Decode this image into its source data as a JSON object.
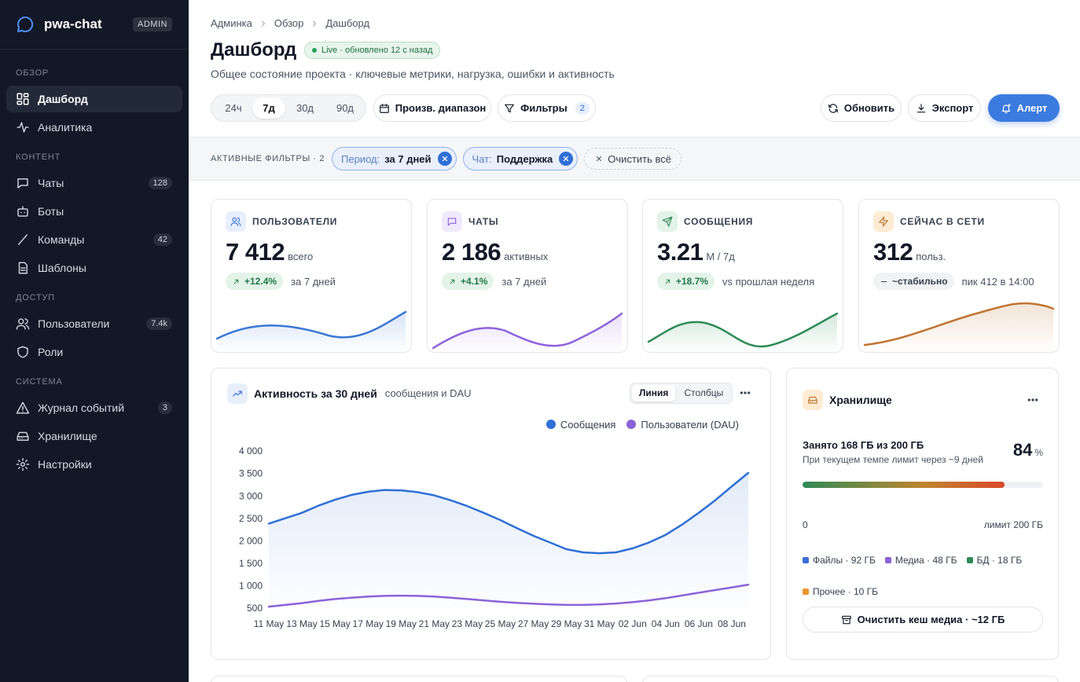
{
  "sidebar": {
    "brand": "pwa-chat",
    "badge": "ADMIN",
    "sections": [
      {
        "title": "ОБЗОР",
        "items": [
          {
            "label": "Дашборд"
          },
          {
            "label": "Аналитика"
          }
        ]
      },
      {
        "title": "КОНТЕНТ",
        "items": [
          {
            "label": "Чаты",
            "count": 128
          },
          {
            "label": "Боты"
          },
          {
            "label": "Команды",
            "count": 42
          },
          {
            "label": "Шаблоны"
          }
        ]
      },
      {
        "title": "ДОСТУП",
        "items": [
          {
            "label": "Пользователи",
            "count": "7.4k"
          },
          {
            "label": "Роли"
          }
        ]
      },
      {
        "title": "СИСТЕМА",
        "items": [
          {
            "label": "Журнал событий",
            "count": 3
          },
          {
            "label": "Хранилище"
          },
          {
            "label": "Настройки"
          }
        ]
      }
    ]
  },
  "header": {
    "breadcrumbs": [
      "Админка",
      "Обзор",
      "Дашборд"
    ],
    "title": "Дашборд",
    "live": "Live · обновлено 12 с назад",
    "subtitle": "Общее состояние проекта · ключевые метрики, нагрузка, ошибки и активность"
  },
  "toolbar": {
    "ranges": [
      "24ч",
      "7д",
      "30д",
      "90д"
    ],
    "custom": "Произв. диапазон",
    "filters": "Фильтры",
    "filters_count": 2,
    "refresh": "Обновить",
    "export": "Экспорт",
    "alert": "Алерт"
  },
  "active_filters": {
    "label": "АКТИВНЫЕ ФИЛЬТРЫ · 2",
    "chips": [
      {
        "key": "Период:",
        "value": "за 7 дней"
      },
      {
        "key": "Чат:",
        "value": "Поддержка"
      }
    ],
    "clear": "Очистить всё"
  },
  "kpis": [
    {
      "title": "ПОЛЬЗОВАТЕЛИ",
      "value": "7 412",
      "unit": "всего",
      "delta": "+12.4%",
      "note": "за 7 дней",
      "color": "#3a78d4"
    },
    {
      "title": "ЧАТЫ",
      "value": "2 186",
      "unit": "активных",
      "delta": "+4.1%",
      "note": "за 7 дней",
      "color": "#8e63dc"
    },
    {
      "title": "СООБЩЕНИЯ",
      "value": 3.21,
      "unit": "М / 7д",
      "delta": "+18.7%",
      "note": "vs прошлая неделя",
      "color": "#2e8b57"
    },
    {
      "title": "СЕЙЧАС В СЕТИ",
      "value": 312,
      "unit": "польз.",
      "delta": "~стабильно",
      "note": "пик 412 в 14:00",
      "color": "#c07532"
    }
  ],
  "chart_data": {
    "type": "line",
    "title": "Активность за 30 дней",
    "subtitle": "сообщения и DAU",
    "modes": [
      "Линия",
      "Столбцы"
    ],
    "categories": [
      "11 May",
      null,
      "13 May",
      null,
      "15 May",
      null,
      "17 May",
      null,
      "19 May",
      null,
      "21 May",
      null,
      "23 May",
      null,
      "25 May",
      null,
      "27 May",
      null,
      "29 May",
      null,
      "31 May",
      null,
      "02 Jun",
      null,
      "04 Jun",
      null,
      "06 Jun",
      null,
      "08 Jun",
      null
    ],
    "series": [
      {
        "name": "Сообщения",
        "color": "#2f6fd6",
        "values": [
          2400,
          2520,
          2640,
          2800,
          2930,
          3040,
          3110,
          3150,
          3140,
          3100,
          3030,
          2920,
          2790,
          2640,
          2480,
          2300,
          2130,
          1980,
          1830,
          1760,
          1740,
          1760,
          1850,
          1980,
          2150,
          2380,
          2640,
          2920,
          3230,
          3530
        ]
      },
      {
        "name": "Пользователи (DAU)",
        "color": "#8b63d8",
        "values": [
          550,
          590,
          630,
          680,
          720,
          750,
          775,
          790,
          795,
          790,
          775,
          750,
          720,
          690,
          660,
          635,
          615,
          600,
          590,
          590,
          600,
          620,
          650,
          690,
          740,
          800,
          860,
          920,
          980,
          1040
        ]
      }
    ],
    "ylim": [
      500,
      4000
    ],
    "yticks": [
      500,
      {
        "value": 1000,
        "label": "1 000"
      },
      {
        "value": 1500,
        "label": "1 500"
      },
      {
        "value": 2000,
        "label": "2 000"
      },
      {
        "value": 2500,
        "label": "2 500"
      },
      {
        "value": 3000,
        "label": "3 000"
      },
      {
        "value": 3500,
        "label": "3 500"
      },
      {
        "value": 4000,
        "label": "4 000"
      }
    ],
    "grid": false,
    "legend": "top-right"
  },
  "storage": {
    "title": "Хранилище",
    "used": "Занято 168 ГБ из 200 ГБ",
    "forecast": "При текущем темпе лимит через ~9 дней",
    "percent": 84,
    "percent_unit": "%",
    "scale_min": "0",
    "scale_max": "лимит 200 ГБ",
    "legend": [
      {
        "label": "Файлы · 92 ГБ",
        "color": "#3b6fd6"
      },
      {
        "label": "Медиа · 48 ГБ",
        "color": "#8b63d8"
      },
      {
        "label": "БД · 18 ГБ",
        "color": "#2e8b57"
      },
      {
        "label": "Прочее · 10 ГБ",
        "color": "#e8962e"
      }
    ],
    "action": "Очистить кеш медиа · ~12 ГБ"
  }
}
